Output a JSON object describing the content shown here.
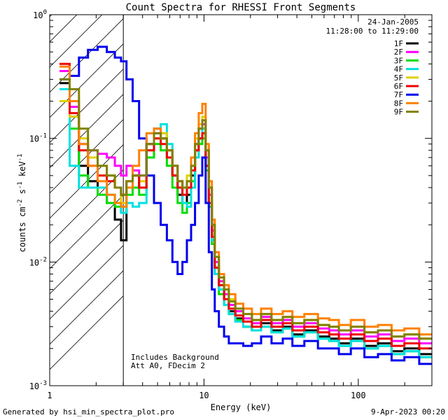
{
  "chart_data": {
    "type": "line",
    "title": "Count Spectra for RHESSI Front Segments",
    "xlabel": "Energy (keV)",
    "ylabel_parts": [
      "counts cm",
      "-2",
      " s",
      "-1",
      " keV",
      "-1"
    ],
    "xscale": "log",
    "yscale": "log",
    "xlim": [
      1,
      300
    ],
    "ylim": [
      0.001,
      1
    ],
    "x_ticks": [
      {
        "v": 1,
        "label": "1"
      },
      {
        "v": 10,
        "label": "10"
      },
      {
        "v": 100,
        "label": "100"
      }
    ],
    "y_ticks": [
      {
        "v": 0.001,
        "base": "10",
        "exp": "-3"
      },
      {
        "v": 0.01,
        "base": "10",
        "exp": "-2"
      },
      {
        "v": 0.1,
        "base": "10",
        "exp": "-1"
      },
      {
        "v": 1,
        "base": "10",
        "exp": "0"
      }
    ],
    "shaded_region": {
      "x": [
        1,
        3
      ],
      "style": "hatched"
    },
    "date_text": "24-Jan-2005",
    "time_range_text": "11:28:00 to 11:29:00",
    "annotations": [
      "Includes Background",
      "Att A0, FDecim 2"
    ],
    "series": [
      {
        "name": "1F",
        "color": "#000000",
        "x": [
          1.25,
          1.45,
          1.65,
          1.9,
          2.2,
          2.5,
          2.8,
          3.0,
          3.3,
          3.6,
          4.0,
          4.5,
          5.0,
          5.5,
          6.0,
          6.5,
          7.0,
          7.5,
          8.0,
          8.5,
          9.0,
          9.5,
          10.0,
          10.5,
          11.0,
          11.5,
          12.0,
          13.0,
          14.0,
          15.0,
          17.0,
          19.0,
          22.0,
          25.0,
          30.0,
          35.0,
          40.0,
          50.0,
          60.0,
          70.0,
          80.0,
          100.0,
          120.0,
          150.0,
          180.0,
          220.0,
          280.0
        ],
        "y": [
          0.28,
          0.15,
          0.06,
          0.045,
          0.04,
          0.03,
          0.022,
          0.015,
          0.04,
          0.05,
          0.04,
          0.09,
          0.11,
          0.1,
          0.07,
          0.05,
          0.035,
          0.03,
          0.035,
          0.05,
          0.08,
          0.1,
          0.11,
          0.06,
          0.03,
          0.015,
          0.009,
          0.006,
          0.005,
          0.004,
          0.0035,
          0.003,
          0.0028,
          0.0032,
          0.0028,
          0.003,
          0.0026,
          0.0028,
          0.0025,
          0.0024,
          0.0022,
          0.0024,
          0.0021,
          0.0022,
          0.0019,
          0.002,
          0.0018
        ]
      },
      {
        "name": "2F",
        "color": "#ff00ff",
        "x": [
          1.25,
          1.45,
          1.65,
          1.9,
          2.2,
          2.5,
          2.8,
          3.0,
          3.3,
          3.6,
          4.0,
          4.5,
          5.0,
          5.5,
          6.0,
          6.5,
          7.0,
          7.5,
          8.0,
          8.5,
          9.0,
          9.5,
          10.0,
          10.5,
          11.0,
          11.5,
          12.0,
          13.0,
          14.0,
          15.0,
          17.0,
          19.0,
          22.0,
          25.0,
          30.0,
          35.0,
          40.0,
          50.0,
          60.0,
          70.0,
          80.0,
          100.0,
          120.0,
          150.0,
          180.0,
          220.0,
          280.0
        ],
        "y": [
          0.35,
          0.18,
          0.09,
          0.08,
          0.075,
          0.07,
          0.06,
          0.05,
          0.06,
          0.055,
          0.05,
          0.09,
          0.12,
          0.11,
          0.08,
          0.06,
          0.045,
          0.04,
          0.04,
          0.055,
          0.09,
          0.12,
          0.13,
          0.07,
          0.035,
          0.018,
          0.01,
          0.007,
          0.0055,
          0.0045,
          0.004,
          0.0035,
          0.0032,
          0.0036,
          0.0032,
          0.0034,
          0.003,
          0.0032,
          0.0029,
          0.0028,
          0.0026,
          0.0028,
          0.0025,
          0.0026,
          0.0023,
          0.0024,
          0.0022
        ]
      },
      {
        "name": "3F",
        "color": "#00dd00",
        "x": [
          1.25,
          1.45,
          1.65,
          1.9,
          2.2,
          2.5,
          2.8,
          3.0,
          3.3,
          3.6,
          4.0,
          4.5,
          5.0,
          5.5,
          6.0,
          6.5,
          7.0,
          7.5,
          8.0,
          8.5,
          9.0,
          9.5,
          10.0,
          10.5,
          11.0,
          11.5,
          12.0,
          13.0,
          14.0,
          15.0,
          17.0,
          19.0,
          22.0,
          25.0,
          30.0,
          35.0,
          40.0,
          50.0,
          60.0,
          70.0,
          80.0,
          100.0,
          120.0,
          150.0,
          180.0,
          220.0,
          280.0
        ],
        "y": [
          0.3,
          0.12,
          0.05,
          0.04,
          0.035,
          0.03,
          0.028,
          0.025,
          0.035,
          0.04,
          0.035,
          0.07,
          0.09,
          0.08,
          0.06,
          0.04,
          0.03,
          0.025,
          0.03,
          0.045,
          0.07,
          0.09,
          0.1,
          0.055,
          0.028,
          0.014,
          0.008,
          0.0055,
          0.0045,
          0.0038,
          0.0034,
          0.003,
          0.0028,
          0.003,
          0.0027,
          0.0029,
          0.0025,
          0.0027,
          0.0024,
          0.0023,
          0.0021,
          0.0023,
          0.002,
          0.0021,
          0.0018,
          0.0019,
          0.0017
        ]
      },
      {
        "name": "4F",
        "color": "#00e0e0",
        "x": [
          1.25,
          1.45,
          1.65,
          1.9,
          2.2,
          2.5,
          2.8,
          3.0,
          3.3,
          3.6,
          4.0,
          4.5,
          5.0,
          5.5,
          6.0,
          6.5,
          7.0,
          7.5,
          8.0,
          8.5,
          9.0,
          9.5,
          10.0,
          10.5,
          11.0,
          11.5,
          12.0,
          13.0,
          14.0,
          15.0,
          17.0,
          19.0,
          22.0,
          25.0,
          30.0,
          35.0,
          40.0,
          50.0,
          60.0,
          70.0,
          80.0,
          100.0,
          120.0,
          150.0,
          180.0,
          220.0,
          280.0
        ],
        "y": [
          0.25,
          0.06,
          0.04,
          0.04,
          0.04,
          0.035,
          0.03,
          0.025,
          0.03,
          0.028,
          0.03,
          0.08,
          0.12,
          0.13,
          0.09,
          0.06,
          0.04,
          0.03,
          0.028,
          0.04,
          0.07,
          0.1,
          0.12,
          0.06,
          0.03,
          0.015,
          0.008,
          0.006,
          0.0045,
          0.0038,
          0.0033,
          0.003,
          0.0028,
          0.003,
          0.0027,
          0.0029,
          0.0025,
          0.0027,
          0.0024,
          0.0023,
          0.0021,
          0.0023,
          0.002,
          0.0021,
          0.0018,
          0.0019,
          0.0017
        ]
      },
      {
        "name": "5F",
        "color": "#e0d000",
        "x": [
          1.25,
          1.45,
          1.65,
          1.9,
          2.2,
          2.5,
          2.8,
          3.0,
          3.3,
          3.6,
          4.0,
          4.5,
          5.0,
          5.5,
          6.0,
          6.5,
          7.0,
          7.5,
          8.0,
          8.5,
          9.0,
          9.5,
          10.0,
          10.5,
          11.0,
          11.5,
          12.0,
          13.0,
          14.0,
          15.0,
          17.0,
          19.0,
          22.0,
          25.0,
          30.0,
          35.0,
          40.0,
          50.0,
          60.0,
          70.0,
          80.0,
          100.0,
          120.0,
          150.0,
          180.0,
          220.0,
          280.0
        ],
        "y": [
          0.2,
          0.15,
          0.1,
          0.07,
          0.06,
          0.05,
          0.04,
          0.03,
          0.04,
          0.05,
          0.045,
          0.08,
          0.1,
          0.11,
          0.08,
          0.06,
          0.045,
          0.04,
          0.05,
          0.07,
          0.1,
          0.13,
          0.15,
          0.08,
          0.04,
          0.02,
          0.011,
          0.0075,
          0.006,
          0.005,
          0.0042,
          0.0038,
          0.0034,
          0.0038,
          0.0034,
          0.0036,
          0.0032,
          0.0034,
          0.0031,
          0.003,
          0.0028,
          0.003,
          0.0027,
          0.0028,
          0.0025,
          0.0026,
          0.0024
        ]
      },
      {
        "name": "6F",
        "color": "#ee0000",
        "x": [
          1.25,
          1.45,
          1.65,
          1.9,
          2.2,
          2.5,
          2.8,
          3.0,
          3.3,
          3.6,
          4.0,
          4.5,
          5.0,
          5.5,
          6.0,
          6.5,
          7.0,
          7.5,
          8.0,
          8.5,
          9.0,
          9.5,
          10.0,
          10.5,
          11.0,
          11.5,
          12.0,
          13.0,
          14.0,
          15.0,
          17.0,
          19.0,
          22.0,
          25.0,
          30.0,
          35.0,
          40.0,
          50.0,
          60.0,
          70.0,
          80.0,
          100.0,
          120.0,
          150.0,
          180.0,
          220.0,
          280.0
        ],
        "y": [
          0.4,
          0.16,
          0.08,
          0.06,
          0.05,
          0.045,
          0.04,
          0.035,
          0.045,
          0.05,
          0.04,
          0.08,
          0.1,
          0.09,
          0.07,
          0.05,
          0.04,
          0.035,
          0.04,
          0.055,
          0.08,
          0.1,
          0.11,
          0.06,
          0.03,
          0.016,
          0.009,
          0.0065,
          0.005,
          0.0042,
          0.0037,
          0.0033,
          0.003,
          0.0034,
          0.003,
          0.0032,
          0.0028,
          0.003,
          0.0027,
          0.0026,
          0.0024,
          0.0026,
          0.0023,
          0.0024,
          0.0021,
          0.0022,
          0.002
        ]
      },
      {
        "name": "7F",
        "color": "#0000ee",
        "x": [
          1.25,
          1.45,
          1.65,
          1.9,
          2.2,
          2.5,
          2.8,
          3.0,
          3.3,
          3.6,
          4.0,
          4.5,
          5.0,
          5.5,
          6.0,
          6.5,
          7.0,
          7.5,
          8.0,
          8.5,
          9.0,
          9.5,
          10.0,
          10.5,
          11.0,
          11.5,
          12.0,
          13.0,
          14.0,
          15.0,
          17.0,
          19.0,
          22.0,
          25.0,
          30.0,
          35.0,
          40.0,
          50.0,
          60.0,
          70.0,
          80.0,
          100.0,
          120.0,
          150.0,
          180.0,
          220.0,
          280.0
        ],
        "y": [
          0.3,
          0.32,
          0.45,
          0.52,
          0.55,
          0.5,
          0.45,
          0.42,
          0.3,
          0.2,
          0.1,
          0.05,
          0.03,
          0.02,
          0.015,
          0.01,
          0.008,
          0.01,
          0.015,
          0.02,
          0.03,
          0.05,
          0.07,
          0.03,
          0.012,
          0.006,
          0.004,
          0.003,
          0.0025,
          0.0022,
          0.0022,
          0.0021,
          0.0022,
          0.0025,
          0.0022,
          0.0024,
          0.0021,
          0.0023,
          0.002,
          0.002,
          0.0018,
          0.002,
          0.0017,
          0.0018,
          0.0016,
          0.0017,
          0.0015
        ]
      },
      {
        "name": "8F",
        "color": "#ff8000",
        "x": [
          1.25,
          1.45,
          1.65,
          1.9,
          2.2,
          2.5,
          2.8,
          3.0,
          3.3,
          3.6,
          4.0,
          4.5,
          5.0,
          5.5,
          6.0,
          6.5,
          7.0,
          7.5,
          8.0,
          8.5,
          9.0,
          9.5,
          10.0,
          10.5,
          11.0,
          11.5,
          12.0,
          13.0,
          14.0,
          15.0,
          17.0,
          19.0,
          22.0,
          25.0,
          30.0,
          35.0,
          40.0,
          50.0,
          60.0,
          70.0,
          80.0,
          100.0,
          120.0,
          150.0,
          180.0,
          220.0,
          280.0
        ],
        "y": [
          0.38,
          0.2,
          0.09,
          0.06,
          0.045,
          0.035,
          0.03,
          0.028,
          0.04,
          0.06,
          0.08,
          0.11,
          0.12,
          0.1,
          0.08,
          0.06,
          0.045,
          0.04,
          0.045,
          0.07,
          0.11,
          0.16,
          0.19,
          0.09,
          0.045,
          0.022,
          0.012,
          0.008,
          0.0065,
          0.0055,
          0.0046,
          0.0042,
          0.0038,
          0.0042,
          0.0038,
          0.004,
          0.0036,
          0.0038,
          0.0035,
          0.0034,
          0.0031,
          0.0034,
          0.003,
          0.0031,
          0.0028,
          0.0029,
          0.0026
        ]
      },
      {
        "name": "9F",
        "color": "#808000",
        "x": [
          1.25,
          1.45,
          1.65,
          1.9,
          2.2,
          2.5,
          2.8,
          3.0,
          3.3,
          3.6,
          4.0,
          4.5,
          5.0,
          5.5,
          6.0,
          6.5,
          7.0,
          7.5,
          8.0,
          8.5,
          9.0,
          9.5,
          10.0,
          10.5,
          11.0,
          11.5,
          12.0,
          13.0,
          14.0,
          15.0,
          17.0,
          19.0,
          22.0,
          25.0,
          30.0,
          35.0,
          40.0,
          50.0,
          60.0,
          70.0,
          80.0,
          100.0,
          120.0,
          150.0,
          180.0,
          220.0,
          280.0
        ],
        "y": [
          0.3,
          0.25,
          0.12,
          0.08,
          0.06,
          0.05,
          0.04,
          0.035,
          0.045,
          0.05,
          0.05,
          0.09,
          0.11,
          0.1,
          0.08,
          0.06,
          0.045,
          0.04,
          0.045,
          0.06,
          0.09,
          0.12,
          0.14,
          0.08,
          0.04,
          0.02,
          0.011,
          0.0075,
          0.006,
          0.0048,
          0.0042,
          0.0038,
          0.0034,
          0.0038,
          0.0034,
          0.0036,
          0.0032,
          0.0034,
          0.0031,
          0.003,
          0.0028,
          0.003,
          0.0027,
          0.0028,
          0.0025,
          0.0026,
          0.0024
        ]
      }
    ]
  },
  "footer": {
    "generated_by": "Generated by hsi_min_spectra_plot.pro",
    "timestamp": "9-Apr-2023 00:20"
  }
}
